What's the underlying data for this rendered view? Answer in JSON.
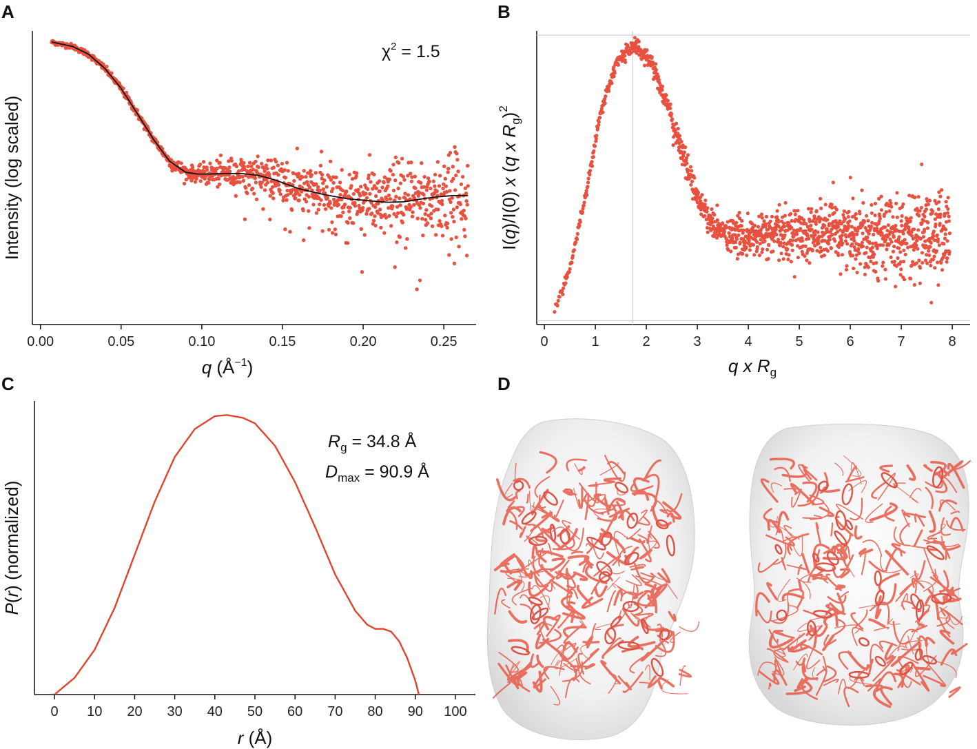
{
  "colors": {
    "points": "#e8513f",
    "fit_line": "#111111",
    "pr_line": "#e0442f",
    "guide": "#d0d0d0",
    "envelope": "#e8e8e8",
    "ribbon": "#e85a48"
  },
  "panel_labels": [
    "A",
    "B",
    "C",
    "D"
  ],
  "chart_data": [
    {
      "panel": "A",
      "type": "scatter",
      "title": "",
      "xlabel": "q (Å⁻¹)",
      "xlabel_var": "q",
      "xlabel_unit_open": "(Å",
      "xlabel_unit_sup": "−1",
      "xlabel_unit_close": ")",
      "ylabel": "Intensity (log scaled)",
      "xlim": [
        -0.005,
        0.27
      ],
      "ylim": [
        -6.4,
        0.25
      ],
      "x_ticks": [
        0.0,
        0.05,
        0.1,
        0.15,
        0.2,
        0.25
      ],
      "x_tick_labels": [
        "0.00",
        "0.05",
        "0.10",
        "0.15",
        "0.20",
        "0.25"
      ],
      "y_ticks_shown": false,
      "annotation": {
        "chi": "χ",
        "sup": "2",
        "text": " = 1.5"
      },
      "q_max": 0.265,
      "n_points": 1100,
      "fit_curve": {
        "x": [
          0.007,
          0.02,
          0.03,
          0.04,
          0.05,
          0.06,
          0.07,
          0.08,
          0.09,
          0.097,
          0.105,
          0.115,
          0.125,
          0.135,
          0.145,
          0.16,
          0.175,
          0.19,
          0.205,
          0.215,
          0.225,
          0.235,
          0.245,
          0.255,
          0.265
        ],
        "y": [
          0.0,
          -0.1,
          -0.28,
          -0.6,
          -1.05,
          -1.62,
          -2.2,
          -2.7,
          -2.95,
          -2.99,
          -2.99,
          -2.98,
          -2.98,
          -3.02,
          -3.12,
          -3.32,
          -3.45,
          -3.55,
          -3.6,
          -3.63,
          -3.62,
          -3.56,
          -3.51,
          -3.48,
          -3.48
        ]
      }
    },
    {
      "panel": "B",
      "type": "scatter",
      "title": "",
      "xlabel": "q x Rg",
      "ylabel": "I(q)/I(0) x (q x Rg)²",
      "ylabel_parts": {
        "a": "I(",
        "q1": "q",
        "b": ")/I(0) ",
        "x1": "x",
        "c": " (",
        "q2": "q",
        "x2": " x ",
        "r": "R",
        "sub": "g",
        "d": ")",
        "sup": "2"
      },
      "xlim": [
        -0.15,
        8.35
      ],
      "ylim": [
        -0.015,
        1.12
      ],
      "x_ticks": [
        0,
        1,
        2,
        3,
        4,
        5,
        6,
        7,
        8
      ],
      "x_tick_labels": [
        "0",
        "1",
        "2",
        "3",
        "4",
        "5",
        "6",
        "7",
        "8"
      ],
      "y_ticks_shown": false,
      "guide_lines": {
        "x": 1.73,
        "y_top": 1.104,
        "y_bottom": 0.0
      },
      "x_start": 0.2,
      "x_end": 7.95,
      "peak": {
        "x": 1.75,
        "y": 1.07
      },
      "plateau_level": 0.33
    },
    {
      "panel": "C",
      "type": "line",
      "title": "",
      "xlabel": "r (Å)",
      "xlabel_var": "r",
      "xlabel_unit": "(Å)",
      "ylabel": "P(r) (normalized)",
      "ylabel_parts": {
        "p": "P",
        "open": "(",
        "r": "r",
        "close": ")",
        "rest": " (normalized)"
      },
      "xlim": [
        -5,
        105
      ],
      "ylim": [
        0,
        1.05
      ],
      "x_ticks": [
        0,
        10,
        20,
        30,
        40,
        50,
        60,
        70,
        80,
        90,
        100
      ],
      "x_tick_labels": [
        "0",
        "10",
        "20",
        "30",
        "40",
        "50",
        "60",
        "70",
        "80",
        "90",
        "100"
      ],
      "y_ticks_shown": false,
      "annotation_rg": {
        "r": "R",
        "sub": "g",
        "text": " = 34.8 Å"
      },
      "annotation_dmax": {
        "d": "D",
        "sub": "max",
        "text": " = 90.9 Å"
      },
      "curve": {
        "x": [
          0,
          5,
          10,
          15,
          20,
          25,
          30,
          35,
          40,
          43,
          47,
          50,
          55,
          60,
          65,
          70,
          75,
          78,
          80,
          82,
          84,
          86,
          88,
          90,
          90.9
        ],
        "y": [
          0.0,
          0.06,
          0.16,
          0.31,
          0.5,
          0.69,
          0.85,
          0.95,
          0.996,
          1.0,
          0.99,
          0.97,
          0.89,
          0.76,
          0.6,
          0.43,
          0.3,
          0.25,
          0.235,
          0.235,
          0.225,
          0.19,
          0.13,
          0.05,
          0.0
        ]
      }
    }
  ],
  "panel_d": {
    "type": "image",
    "content": "two views of a SAXS envelope with fitted protein ribbon model"
  }
}
